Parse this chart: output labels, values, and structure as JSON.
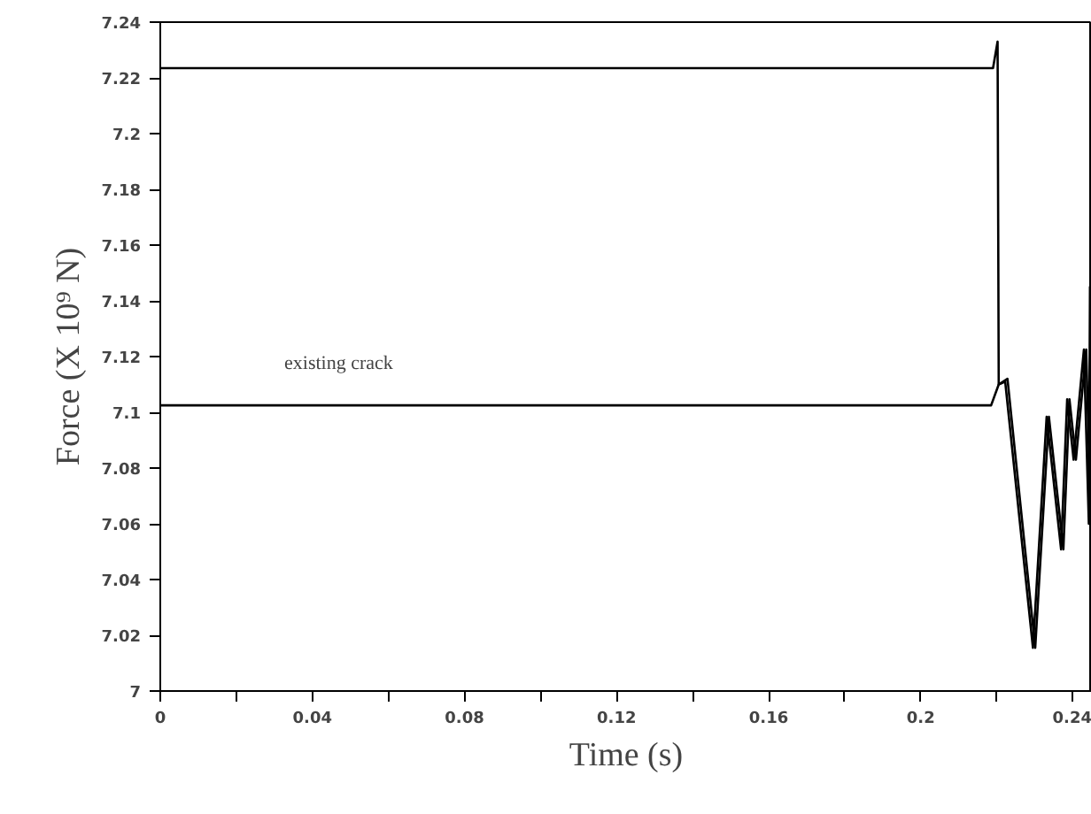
{
  "chart_data": {
    "type": "line",
    "xlabel": "Time (s)",
    "ylabel": "Force (X 10⁹ N)",
    "xlim": [
      0,
      0.245
    ],
    "ylim": [
      7,
      7.24
    ],
    "xticks": [
      0,
      {
        "value": 0.02,
        "label": null
      },
      0.04,
      {
        "value": 0.06,
        "label": null
      },
      0.08,
      {
        "value": 0.1,
        "label": null
      },
      0.12,
      {
        "value": 0.14,
        "label": null
      },
      0.16,
      {
        "value": 0.18,
        "label": null
      },
      0.2,
      {
        "value": 0.22,
        "label": null
      },
      0.24
    ],
    "yticks": [
      7,
      7.02,
      7.04,
      7.06,
      7.08,
      7.1,
      7.12,
      7.14,
      7.16,
      7.18,
      7.2,
      7.22,
      7.24
    ],
    "grid": false,
    "line_style": "solid",
    "annotations": [
      "existing crack"
    ],
    "series": [
      {
        "color": "#000000",
        "x": [
          0,
          0.219,
          0.2202,
          0.2205,
          0.2222,
          0.2295,
          0.2331,
          0.2369,
          0.2385,
          0.2402,
          0.2429,
          0.2442,
          0.2445,
          0.245
        ],
        "values": [
          7.2235,
          7.2235,
          7.233,
          7.11,
          7.111,
          7.0155,
          7.0984,
          7.0508,
          7.1047,
          7.083,
          7.1225,
          7.06,
          7.145,
          7.1
        ]
      },
      {
        "color": "#000000",
        "x": [
          0,
          0.2185,
          0.2205,
          0.2228,
          0.2301,
          0.2337,
          0.2375,
          0.2391,
          0.2408,
          0.2435,
          0.2447,
          0.245
        ],
        "values": [
          7.1025,
          7.1025,
          7.11,
          7.112,
          7.0155,
          7.0984,
          7.0508,
          7.1047,
          7.083,
          7.1225,
          7.06,
          7.09
        ]
      }
    ]
  }
}
